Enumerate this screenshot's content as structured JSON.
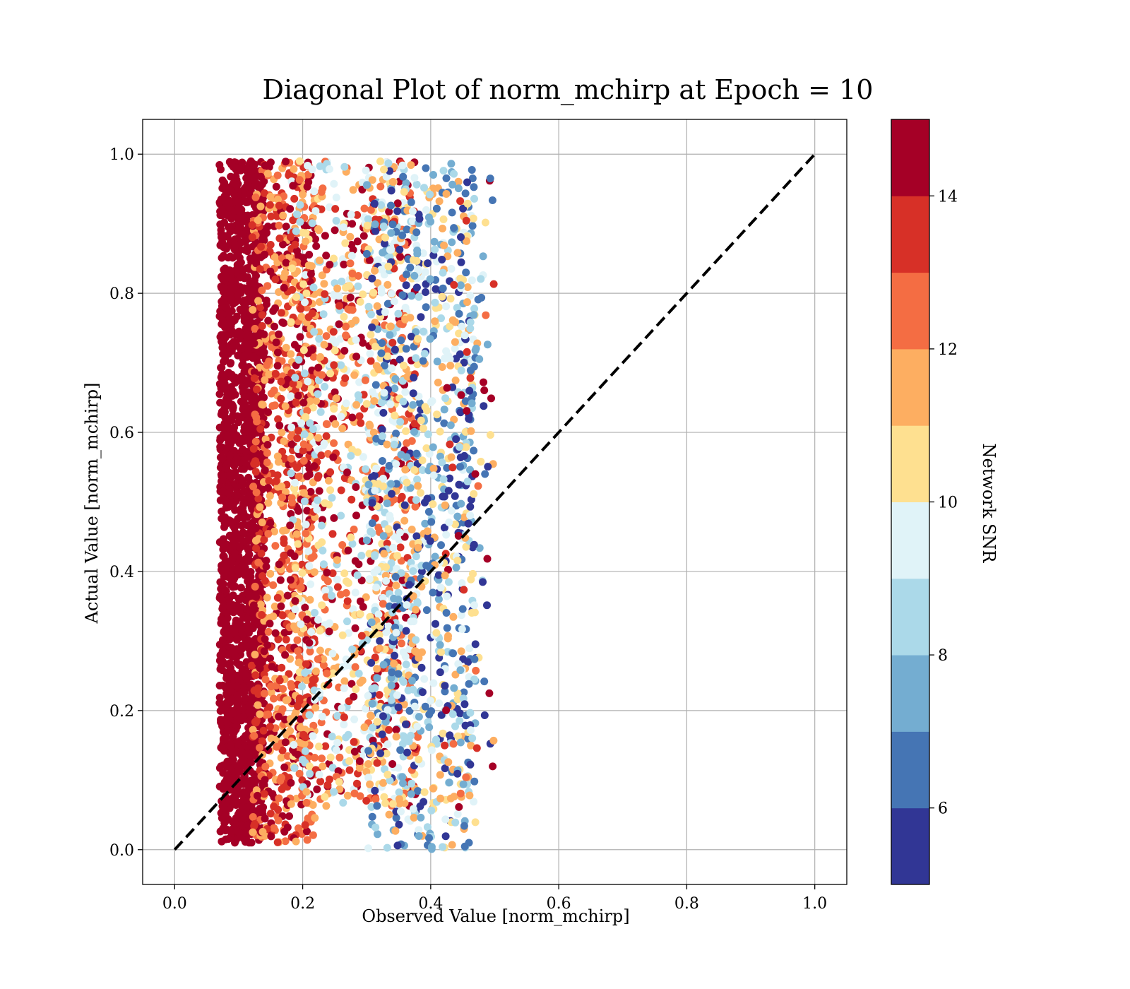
{
  "chart_data": {
    "type": "scatter",
    "title": "Diagonal Plot of norm_mchirp at Epoch = 10",
    "xlabel": "Observed Value [norm_mchirp]",
    "ylabel": "Actual Value [norm_mchirp]",
    "xlim": [
      -0.05,
      1.05
    ],
    "ylim": [
      -0.05,
      1.05
    ],
    "xticks": [
      "0.0",
      "0.2",
      "0.4",
      "0.6",
      "0.8",
      "1.0"
    ],
    "yticks": [
      "0.0",
      "0.2",
      "0.4",
      "0.6",
      "0.8",
      "1.0"
    ],
    "grid": true,
    "reference_line": {
      "style": "dashed",
      "color": "#000000",
      "from": [
        0,
        0
      ],
      "to": [
        1,
        1
      ]
    },
    "colorbar": {
      "label": "Network SNR",
      "range": [
        5,
        15
      ],
      "ticks": [
        "6",
        "8",
        "10",
        "12",
        "14"
      ],
      "colors": [
        "#313695",
        "#4575b4",
        "#74add1",
        "#abd9e9",
        "#e0f3f8",
        "#fee090",
        "#fdae61",
        "#f46d43",
        "#d73027",
        "#a50026"
      ]
    },
    "point_clusters": [
      {
        "x_range": [
          0.07,
          0.14
        ],
        "y_range": [
          0.01,
          0.99
        ],
        "snr_range": [
          14,
          15
        ],
        "count": 1800
      },
      {
        "x_range": [
          0.12,
          0.22
        ],
        "y_range": [
          0.01,
          0.99
        ],
        "snr_range": [
          11,
          15
        ],
        "count": 900
      },
      {
        "x_range": [
          0.18,
          0.38
        ],
        "y_range": [
          0.06,
          0.99
        ],
        "snr_range": [
          8,
          15
        ],
        "count": 1200
      },
      {
        "x_range": [
          0.3,
          0.47
        ],
        "y_range": [
          0.0,
          0.99
        ],
        "snr_range": [
          5,
          12
        ],
        "count": 900
      },
      {
        "x_range": [
          0.42,
          0.5
        ],
        "y_range": [
          0.05,
          0.99
        ],
        "snr_range": [
          5,
          15
        ],
        "count": 120
      }
    ]
  }
}
